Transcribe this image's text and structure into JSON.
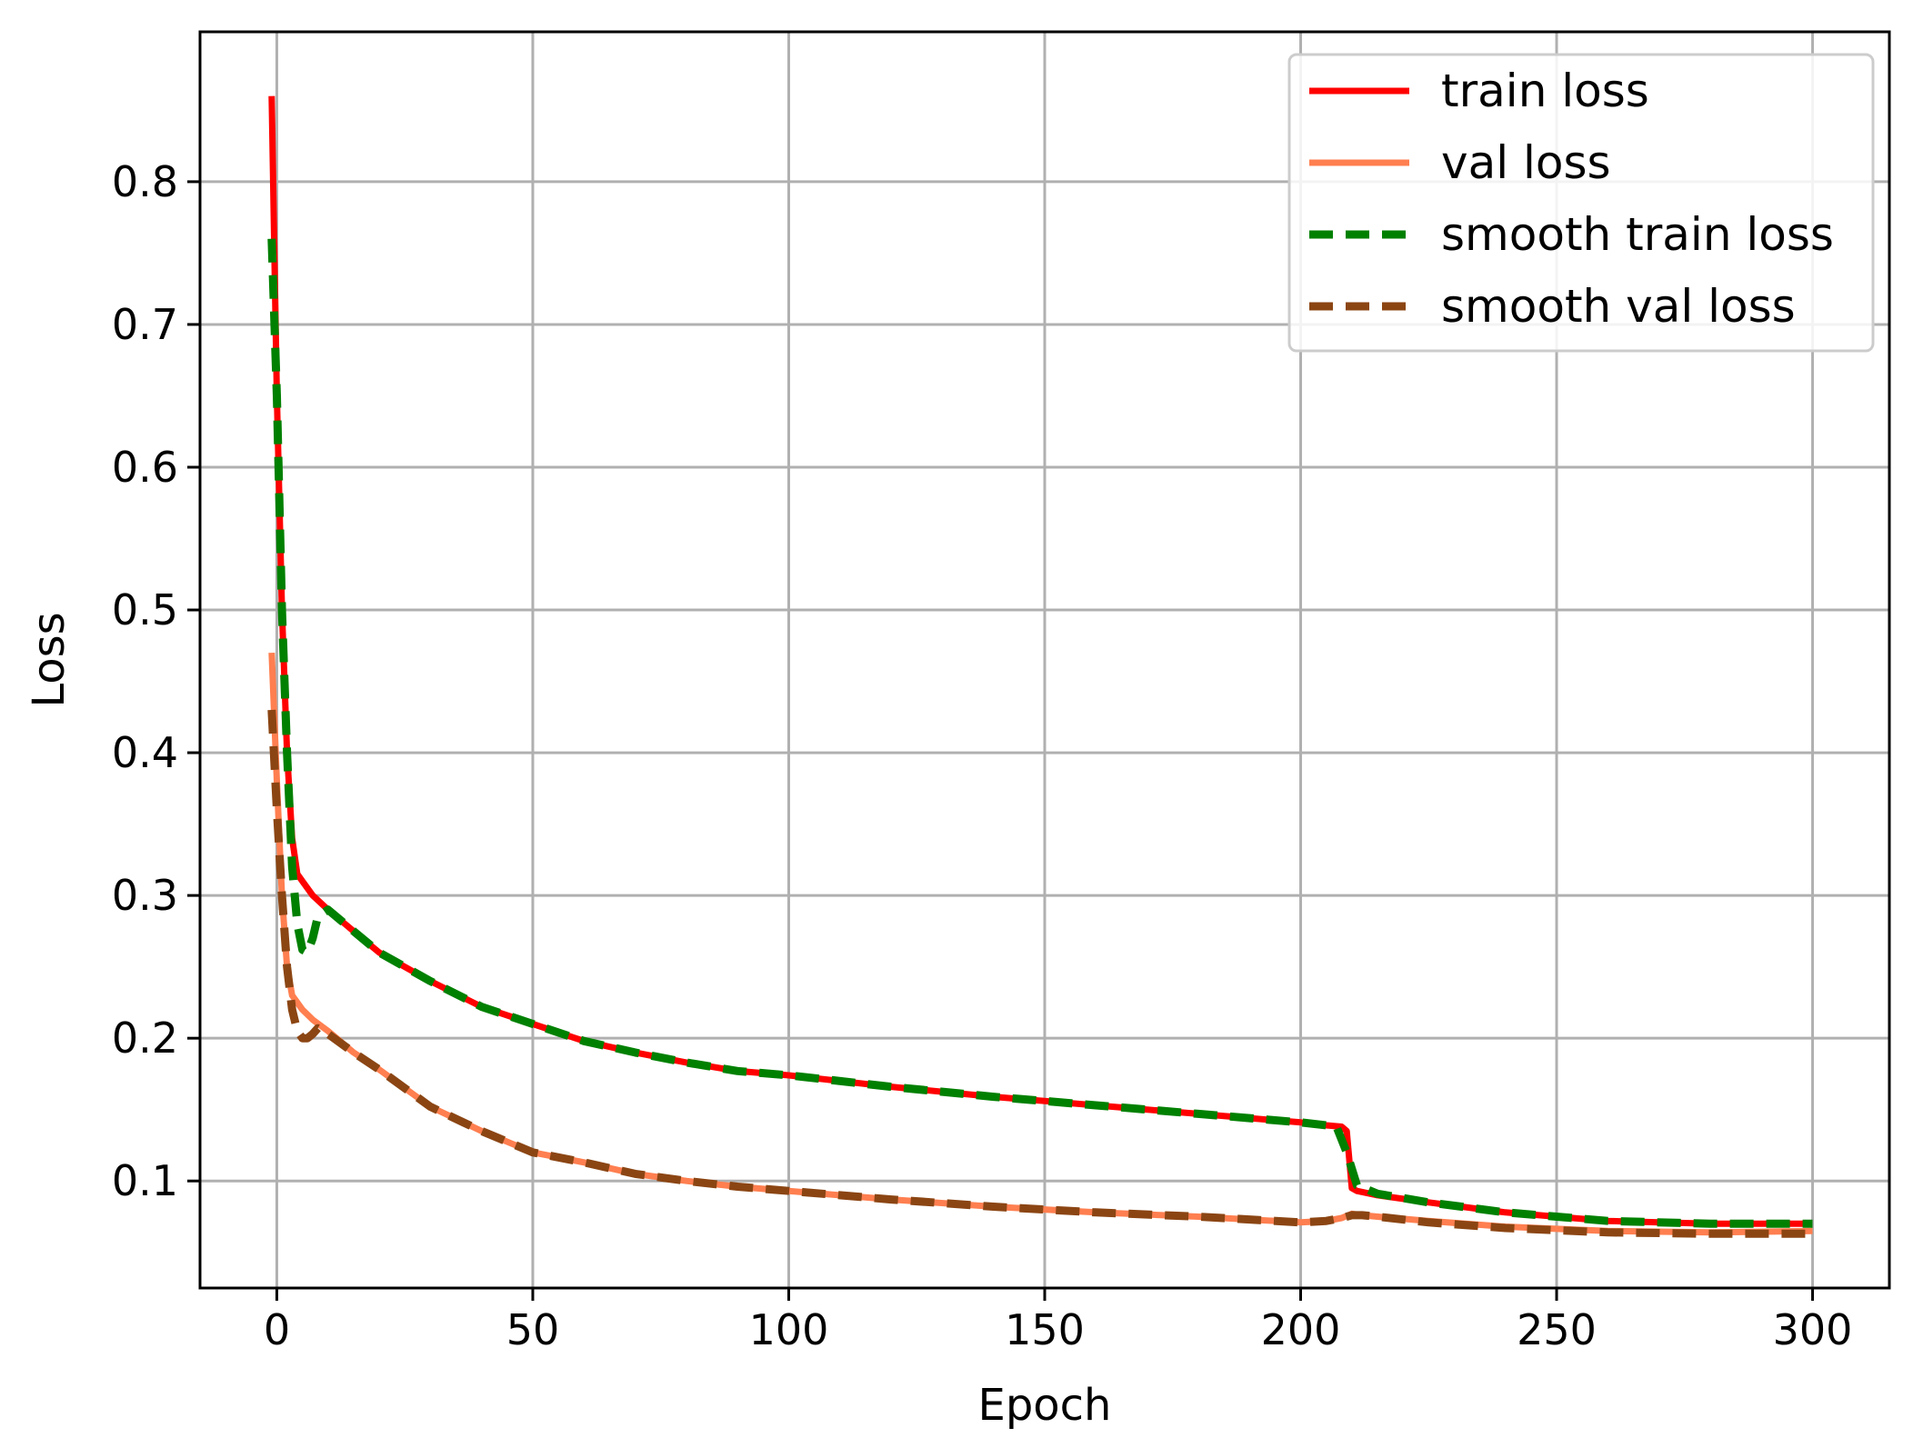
{
  "chart_data": {
    "type": "line",
    "title": "",
    "xlabel": "Epoch",
    "ylabel": "Loss",
    "xlim": [
      -15,
      315
    ],
    "ylim": [
      0.025,
      0.905
    ],
    "xticks": [
      0,
      50,
      100,
      150,
      200,
      250,
      300
    ],
    "yticks": [
      0.1,
      0.2,
      0.3,
      0.4,
      0.5,
      0.6,
      0.7,
      0.8
    ],
    "xtick_labels": [
      "0",
      "50",
      "100",
      "150",
      "200",
      "250",
      "300"
    ],
    "ytick_labels": [
      "0.1",
      "0.2",
      "0.3",
      "0.4",
      "0.5",
      "0.6",
      "0.7",
      "0.8"
    ],
    "grid": true,
    "legend_position": "top-right",
    "series": [
      {
        "name": "train loss",
        "color": "#ff0000",
        "dash": "solid",
        "x": [
          -1,
          0,
          1,
          2,
          3,
          4,
          5,
          7,
          10,
          15,
          20,
          30,
          40,
          50,
          60,
          70,
          80,
          90,
          100,
          120,
          140,
          160,
          180,
          200,
          205,
          208,
          209,
          210,
          211,
          215,
          225,
          240,
          260,
          280,
          300
        ],
        "y": [
          0.86,
          0.65,
          0.5,
          0.4,
          0.34,
          0.315,
          0.31,
          0.3,
          0.29,
          0.275,
          0.26,
          0.24,
          0.222,
          0.21,
          0.198,
          0.19,
          0.183,
          0.177,
          0.174,
          0.166,
          0.159,
          0.153,
          0.147,
          0.141,
          0.139,
          0.138,
          0.135,
          0.095,
          0.093,
          0.09,
          0.085,
          0.078,
          0.072,
          0.07,
          0.07
        ]
      },
      {
        "name": "val loss",
        "color": "#ff7f50",
        "dash": "solid",
        "x": [
          -1,
          0,
          1,
          2,
          3,
          4,
          5,
          7,
          10,
          15,
          20,
          30,
          40,
          50,
          60,
          70,
          80,
          90,
          100,
          120,
          140,
          160,
          180,
          200,
          205,
          208,
          210,
          212,
          215,
          225,
          240,
          260,
          280,
          300
        ],
        "y": [
          0.47,
          0.38,
          0.3,
          0.25,
          0.23,
          0.225,
          0.22,
          0.213,
          0.205,
          0.19,
          0.178,
          0.152,
          0.135,
          0.12,
          0.113,
          0.105,
          0.1,
          0.096,
          0.093,
          0.087,
          0.082,
          0.078,
          0.075,
          0.071,
          0.072,
          0.074,
          0.077,
          0.076,
          0.075,
          0.072,
          0.068,
          0.065,
          0.064,
          0.065
        ]
      },
      {
        "name": "smooth train loss",
        "color": "#008000",
        "dash": "dashed",
        "x": [
          -1,
          0,
          1,
          2,
          3,
          4,
          5,
          6,
          7,
          8,
          10,
          15,
          20,
          30,
          40,
          50,
          60,
          70,
          80,
          90,
          100,
          120,
          140,
          160,
          180,
          200,
          205,
          207,
          209,
          211,
          215,
          225,
          240,
          260,
          280,
          300
        ],
        "y": [
          0.76,
          0.65,
          0.5,
          0.4,
          0.32,
          0.28,
          0.262,
          0.26,
          0.27,
          0.285,
          0.29,
          0.275,
          0.26,
          0.24,
          0.222,
          0.21,
          0.198,
          0.19,
          0.183,
          0.177,
          0.174,
          0.166,
          0.159,
          0.153,
          0.147,
          0.141,
          0.139,
          0.138,
          0.12,
          0.097,
          0.091,
          0.085,
          0.078,
          0.072,
          0.07,
          0.07
        ]
      },
      {
        "name": "smooth val loss",
        "color": "#8b4513",
        "dash": "dashed",
        "x": [
          -1,
          0,
          1,
          2,
          3,
          4,
          5,
          6,
          7,
          8,
          10,
          15,
          20,
          30,
          40,
          50,
          60,
          70,
          80,
          90,
          100,
          120,
          140,
          160,
          180,
          200,
          205,
          208,
          210,
          212,
          215,
          225,
          240,
          260,
          280,
          300
        ],
        "y": [
          0.43,
          0.36,
          0.3,
          0.25,
          0.22,
          0.205,
          0.2,
          0.2,
          0.203,
          0.207,
          0.203,
          0.19,
          0.178,
          0.152,
          0.135,
          0.12,
          0.113,
          0.105,
          0.1,
          0.096,
          0.093,
          0.087,
          0.082,
          0.078,
          0.075,
          0.071,
          0.072,
          0.074,
          0.076,
          0.076,
          0.075,
          0.071,
          0.067,
          0.064,
          0.063,
          0.063
        ]
      }
    ]
  }
}
